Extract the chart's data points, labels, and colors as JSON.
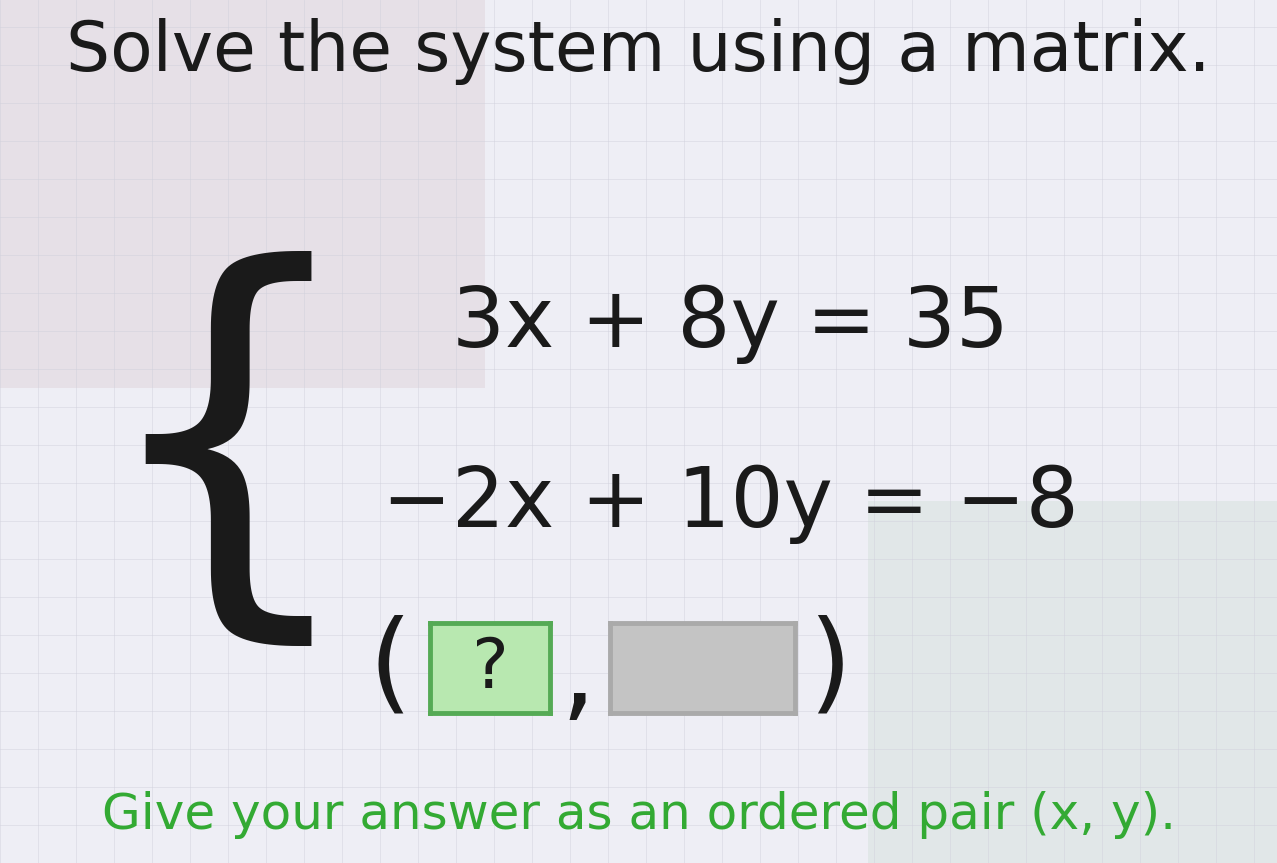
{
  "title": "Solve the system using a matrix.",
  "equation1": "3x + 8y = 35",
  "equation2": "−2x + 10y = −8",
  "answer_label": "Give your answer as an ordered pair (x, y).",
  "question_mark": "?",
  "bg_color": "#eeeef5",
  "bg_tl_color": "#ddd0d8",
  "bg_br_color": "#cdddd4",
  "grid_color": "#d0d0dc",
  "title_color": "#1a1a1a",
  "equation_color": "#1a1a1a",
  "answer_color": "#33aa33",
  "green_box_fill": "#b8e8b0",
  "green_box_border": "#55aa55",
  "gray_box_fill": "#c4c4c4",
  "gray_box_border": "#aaaaaa",
  "figsize": [
    12.77,
    8.63
  ],
  "dpi": 100
}
